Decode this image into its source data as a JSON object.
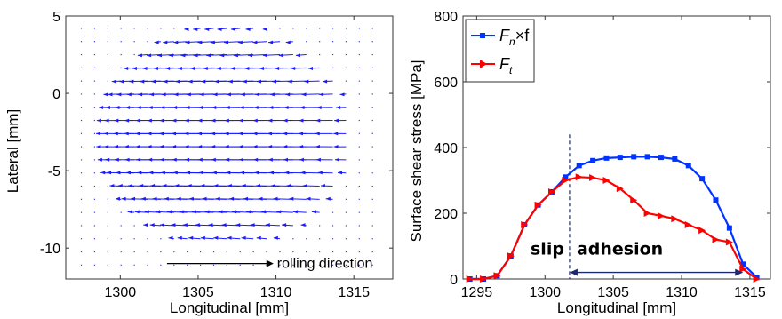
{
  "chart_data": [
    {
      "type": "quiver",
      "xlabel": "Longitudinal [mm]",
      "ylabel": "Lateral [mm]",
      "xlim": [
        1296.5,
        1317.5
      ],
      "ylim": [
        -12,
        5
      ],
      "xticks": [
        1300,
        1305,
        1310,
        1315
      ],
      "yticks": [
        5,
        0,
        -5,
        -10
      ],
      "grid": false,
      "vector_field": {
        "x_start": 1297.5,
        "x_step": 0.85,
        "x_count": 23,
        "y_start": 4.2,
        "y_step": -0.85,
        "y_count": 19,
        "direction": "negative-x",
        "contact_ellipse": {
          "x_center": 1306.9,
          "y_center": -2.8,
          "x_semi_axis": 8.4,
          "y_semi_axis": 7.4
        },
        "max_arrow_length_mm": 1.9
      },
      "annotation": {
        "text": "rolling direction",
        "arrow_from": [
          1303.0,
          -11.0
        ],
        "arrow_to": [
          1309.5,
          -11.0
        ]
      }
    },
    {
      "type": "line",
      "xlabel": "Longitudinal [mm]",
      "ylabel": "Surface shear stress [MPa]",
      "xlim": [
        1294,
        1316.5
      ],
      "ylim": [
        0,
        800
      ],
      "xticks": [
        1295,
        1300,
        1305,
        1310,
        1315
      ],
      "yticks": [
        0,
        200,
        400,
        600,
        800
      ],
      "grid": false,
      "legend_position": "top-left",
      "series": [
        {
          "name_main": "F",
          "name_sub": "n",
          "name_suffix": "×f",
          "color": "#0033ff",
          "marker": "square",
          "x": [
            1294.5,
            1295.5,
            1296.5,
            1297.5,
            1298.5,
            1299.5,
            1300.5,
            1301.5,
            1302.5,
            1303.5,
            1304.5,
            1305.5,
            1306.5,
            1307.5,
            1308.5,
            1309.5,
            1310.5,
            1311.5,
            1312.5,
            1313.5,
            1314.5,
            1315.5
          ],
          "values": [
            0,
            0,
            10,
            70,
            165,
            225,
            265,
            310,
            345,
            360,
            368,
            370,
            372,
            372,
            370,
            365,
            345,
            305,
            240,
            155,
            45,
            5
          ]
        },
        {
          "name_main": "F",
          "name_sub": "t",
          "name_suffix": "",
          "color": "#ff0000",
          "marker": "triangle-right",
          "x": [
            1294.5,
            1295.5,
            1296.5,
            1297.5,
            1298.5,
            1299.5,
            1300.5,
            1301.5,
            1302.5,
            1303.5,
            1304.5,
            1305.5,
            1306.5,
            1307.5,
            1308.5,
            1309.5,
            1310.5,
            1311.5,
            1312.5,
            1313.5,
            1314.5,
            1315.5
          ],
          "values": [
            0,
            0,
            10,
            70,
            165,
            225,
            265,
            300,
            310,
            308,
            300,
            275,
            240,
            200,
            192,
            183,
            165,
            148,
            120,
            112,
            30,
            0
          ]
        }
      ],
      "annotations": {
        "divider_x": 1301.8,
        "slip_label": "slip",
        "adhesion_label": "adhesion",
        "double_arrow_x": [
          1301.8,
          1314.5
        ],
        "double_arrow_y": 20
      }
    }
  ]
}
